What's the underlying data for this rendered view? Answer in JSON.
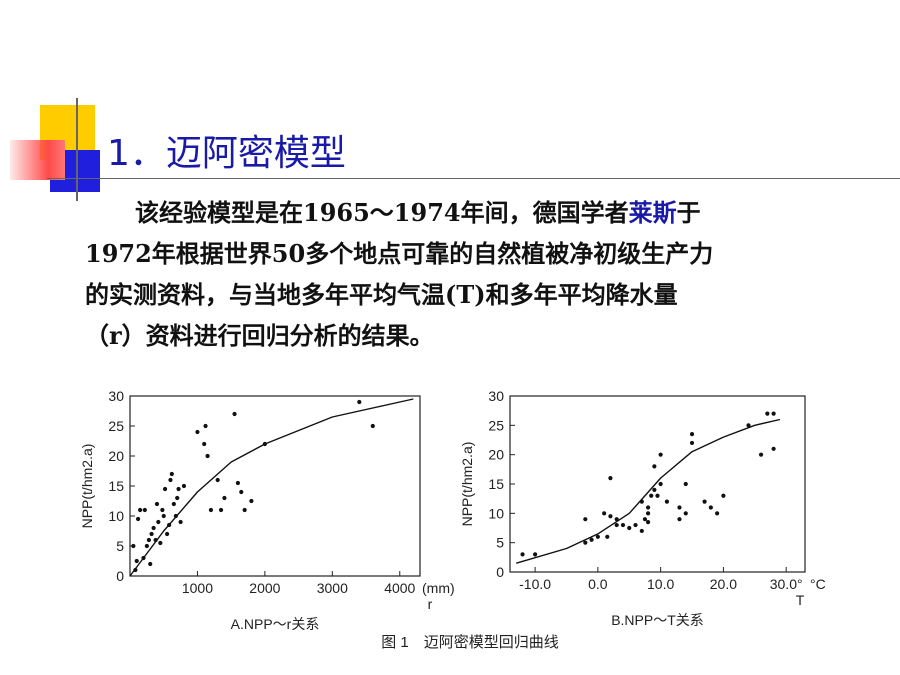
{
  "slide": {
    "title": "1．迈阿密模型",
    "paragraph": {
      "line1_before": "该经验模型是在1965～1974年间，德国学者",
      "highlight": "莱斯",
      "line1_after": "于",
      "line2": "1972年根据世界50多个地点可靠的自然植被净初级生产力",
      "line3": "的实测资料，与当地多年平均气温(T)和多年平均降水量",
      "line4": "（r）资料进行回归分析的结果。"
    },
    "colors": {
      "title": "#1a1aa8",
      "highlight": "#1a1aa8",
      "deco_yellow": "#ffcc00",
      "deco_blue": "#1f1fdd",
      "deco_red": "#ff4a4a"
    }
  },
  "figure": {
    "caption": "图 1　迈阿密模型回归曲线",
    "chart_data": [
      {
        "type": "scatter",
        "xlabel": "r",
        "x_unit_label": "(mm)",
        "ylabel": "NPP(t/hm2.a)",
        "panel_label": "A.NPP～r关系",
        "xlim": [
          0,
          4300
        ],
        "ylim": [
          0,
          30
        ],
        "xticks": [
          "1000",
          "2000",
          "3000",
          "4000"
        ],
        "yticks": [
          "0",
          "5",
          "10",
          "15",
          "20",
          "25",
          "30"
        ],
        "points": [
          [
            50,
            5
          ],
          [
            80,
            1
          ],
          [
            100,
            2.5
          ],
          [
            120,
            9.5
          ],
          [
            150,
            11
          ],
          [
            200,
            3
          ],
          [
            220,
            11
          ],
          [
            250,
            5
          ],
          [
            280,
            6
          ],
          [
            300,
            2
          ],
          [
            320,
            7
          ],
          [
            350,
            8
          ],
          [
            380,
            6
          ],
          [
            400,
            12
          ],
          [
            420,
            9
          ],
          [
            450,
            5.5
          ],
          [
            480,
            11
          ],
          [
            500,
            10
          ],
          [
            520,
            14.5
          ],
          [
            550,
            7
          ],
          [
            580,
            8.5
          ],
          [
            600,
            16
          ],
          [
            620,
            17
          ],
          [
            650,
            12
          ],
          [
            680,
            10
          ],
          [
            700,
            13
          ],
          [
            720,
            14.5
          ],
          [
            750,
            9
          ],
          [
            800,
            15
          ],
          [
            1000,
            24
          ],
          [
            1100,
            22
          ],
          [
            1150,
            20
          ],
          [
            1120,
            25
          ],
          [
            1200,
            11
          ],
          [
            1300,
            16
          ],
          [
            1350,
            11
          ],
          [
            1400,
            13
          ],
          [
            1550,
            27
          ],
          [
            1600,
            15.5
          ],
          [
            1650,
            14
          ],
          [
            1700,
            11
          ],
          [
            1800,
            12.5
          ],
          [
            2000,
            22
          ],
          [
            3400,
            29
          ],
          [
            3600,
            25
          ]
        ],
        "curve": [
          [
            0,
            0
          ],
          [
            500,
            7.5
          ],
          [
            1000,
            14
          ],
          [
            1500,
            19
          ],
          [
            2000,
            22
          ],
          [
            3000,
            26.5
          ],
          [
            4000,
            29
          ],
          [
            4200,
            29.5
          ]
        ]
      },
      {
        "type": "scatter",
        "xlabel": "T",
        "x_unit_label": "°C",
        "ylabel": "NPP(t/hm2.a)",
        "panel_label": "B.NPP～T关系",
        "xlim": [
          -14,
          33
        ],
        "ylim": [
          0,
          30
        ],
        "xticks": [
          "-10.0",
          "0.0",
          "10.0",
          "20.0",
          "30.0°"
        ],
        "yticks": [
          "0",
          "5",
          "10",
          "15",
          "20",
          "25",
          "30"
        ],
        "points": [
          [
            -12,
            3
          ],
          [
            -10,
            3
          ],
          [
            -2,
            5
          ],
          [
            -2,
            9
          ],
          [
            -1,
            5.5
          ],
          [
            0,
            6
          ],
          [
            1,
            10
          ],
          [
            1.5,
            6
          ],
          [
            2,
            9.5
          ],
          [
            2,
            16
          ],
          [
            3,
            8
          ],
          [
            3,
            9
          ],
          [
            4,
            8
          ],
          [
            5,
            7.5
          ],
          [
            6,
            8
          ],
          [
            7,
            12
          ],
          [
            7,
            7
          ],
          [
            7.5,
            9
          ],
          [
            8,
            8.5
          ],
          [
            8,
            10
          ],
          [
            8,
            11
          ],
          [
            8.5,
            13
          ],
          [
            9,
            14
          ],
          [
            9,
            18
          ],
          [
            9.5,
            13
          ],
          [
            10,
            15
          ],
          [
            10,
            20
          ],
          [
            11,
            12
          ],
          [
            13,
            11
          ],
          [
            13,
            9
          ],
          [
            14,
            10
          ],
          [
            14,
            15
          ],
          [
            15,
            23.5
          ],
          [
            15,
            22
          ],
          [
            17,
            12
          ],
          [
            18,
            11
          ],
          [
            19,
            10
          ],
          [
            20,
            13
          ],
          [
            24,
            25
          ],
          [
            26,
            20
          ],
          [
            27,
            27
          ],
          [
            28,
            21
          ],
          [
            28,
            27
          ]
        ],
        "curve": [
          [
            -13,
            1.5
          ],
          [
            -5,
            4
          ],
          [
            0,
            6.5
          ],
          [
            5,
            10
          ],
          [
            10,
            16
          ],
          [
            15,
            20.5
          ],
          [
            20,
            23
          ],
          [
            25,
            25
          ],
          [
            29,
            26
          ]
        ]
      }
    ]
  }
}
